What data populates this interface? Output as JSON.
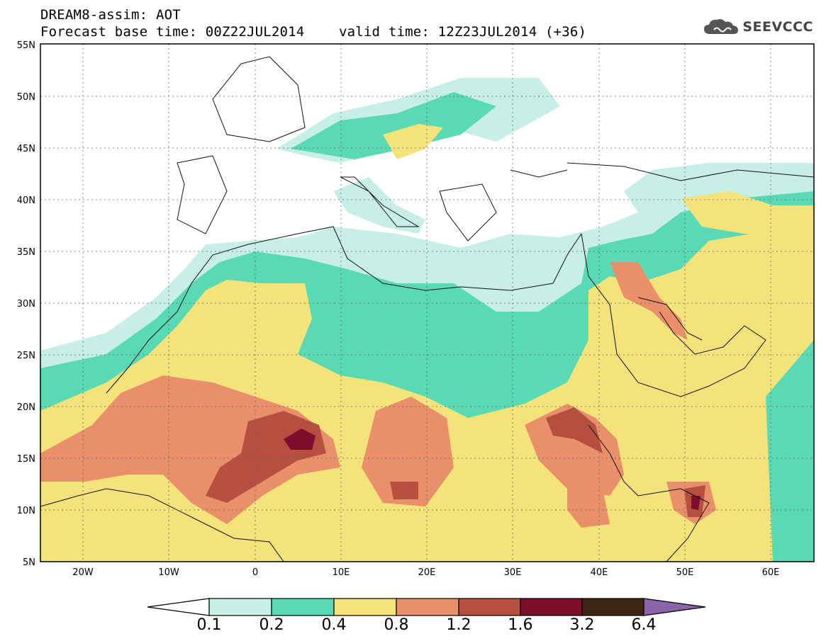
{
  "header": {
    "title_line1": "DREAM8-assim: AOT",
    "title_line2": "Forecast base time: 00Z22JUL2014",
    "valid_time": "valid time: 12Z23JUL2014 (+36)"
  },
  "logo": {
    "icon": "cloud-icon",
    "text": "SEEVCCC"
  },
  "map": {
    "lon_range": [
      -25,
      65
    ],
    "lat_range": [
      5,
      55
    ],
    "lat_labels": [
      "5N",
      "10N",
      "15N",
      "20N",
      "25N",
      "30N",
      "35N",
      "40N",
      "45N",
      "50N",
      "55N"
    ],
    "lon_labels": [
      "20W",
      "10W",
      "0",
      "10E",
      "20E",
      "30E",
      "40E",
      "50E",
      "60E"
    ]
  },
  "colorbar": {
    "levels": [
      "0.1",
      "0.2",
      "0.4",
      "0.8",
      "1.2",
      "1.6",
      "3.2",
      "6.4"
    ],
    "colors": [
      "#ffffff",
      "#c7efe6",
      "#5ad9b5",
      "#f4e27a",
      "#e9906a",
      "#b55040",
      "#7c0d2b",
      "#3d2616",
      "#8a63a8"
    ]
  }
}
